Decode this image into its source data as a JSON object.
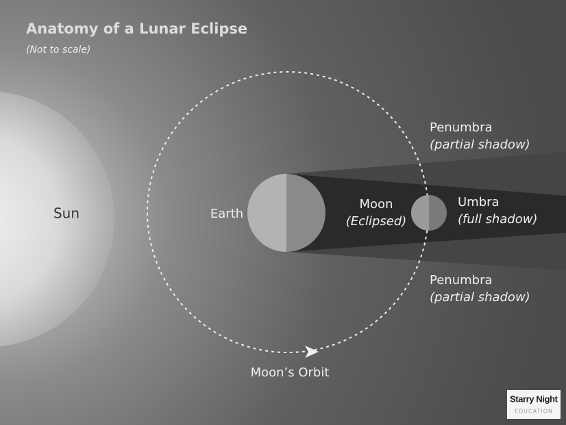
{
  "header": {
    "title": "Anatomy of a Lunar Eclipse",
    "subtitle": "(Not to scale)"
  },
  "bodies": {
    "sun": "Sun",
    "earth": "Earth",
    "moon": "Moon",
    "moon_note": "(Eclipsed)"
  },
  "shadows": {
    "umbra": {
      "label": "Umbra",
      "note": "(full shadow)"
    },
    "penumbra_top": {
      "label": "Penumbra",
      "note": "(partial shadow)"
    },
    "penumbra_bottom": {
      "label": "Penumbra",
      "note": "(partial shadow)"
    }
  },
  "orbit": {
    "label": "Moon’s Orbit"
  },
  "logo": {
    "name": "Starry Night",
    "tagline": "EDUCATION"
  }
}
